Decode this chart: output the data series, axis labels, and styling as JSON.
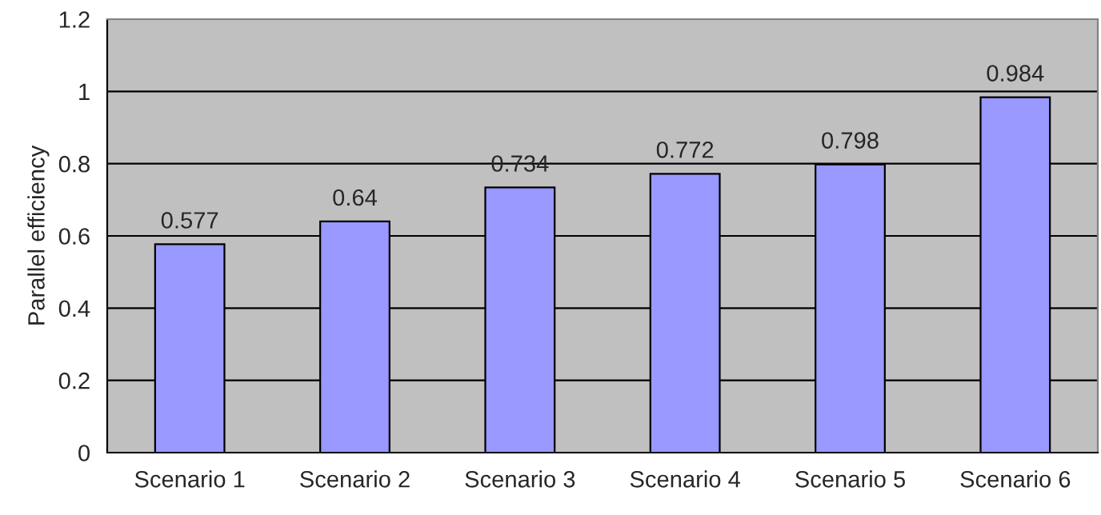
{
  "chart_data": {
    "type": "bar",
    "ylabel": "Parallel efficiency",
    "categories": [
      "Scenario 1",
      "Scenario 2",
      "Scenario 3",
      "Scenario 4",
      "Scenario 5",
      "Scenario 6"
    ],
    "values": [
      0.577,
      0.64,
      0.734,
      0.772,
      0.798,
      0.984
    ],
    "color": "#9999ff",
    "ylim": [
      0,
      1.2
    ],
    "yticks": [
      0,
      0.2,
      0.4,
      0.6,
      0.8,
      1,
      1.2
    ],
    "grid": "y",
    "data_labels": true
  }
}
